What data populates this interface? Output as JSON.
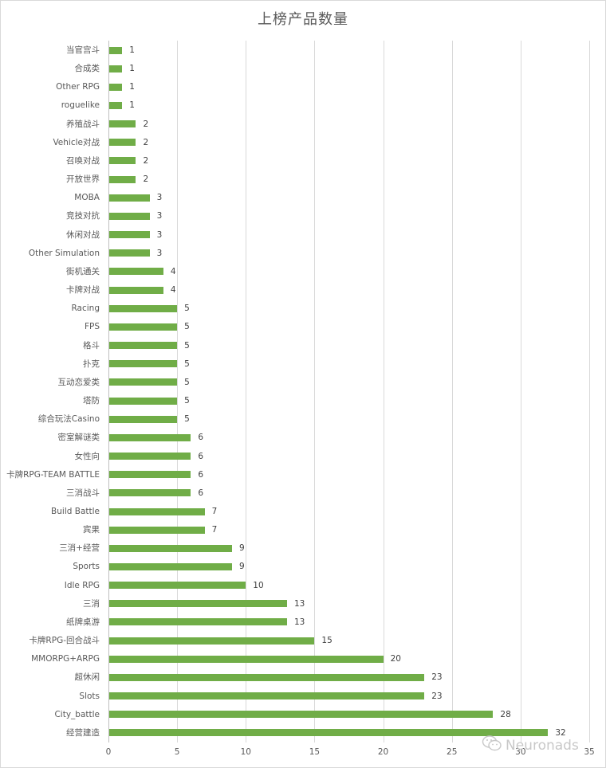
{
  "chart_data": {
    "type": "bar",
    "orientation": "horizontal",
    "title": "上榜产品数量",
    "xlabel": "",
    "ylabel": "",
    "xlim": [
      0,
      35
    ],
    "x_ticks": [
      0,
      5,
      10,
      15,
      20,
      25,
      30,
      35
    ],
    "grid": true,
    "legend": "none",
    "data_labels": true,
    "bar_color": "#70AD47",
    "categories": [
      "当官宫斗",
      "合成类",
      "Other RPG",
      "roguelike",
      "养殖战斗",
      "Vehicle对战",
      "召唤对战",
      "开放世界",
      "MOBA",
      "竞技对抗",
      "休闲对战",
      "Other Simulation",
      "街机通关",
      "卡牌对战",
      "Racing",
      "FPS",
      "格斗",
      "扑克",
      "互动恋爱类",
      "塔防",
      "综合玩法Casino",
      "密室解谜类",
      "女性向",
      "卡牌RPG-TEAM BATTLE",
      "三消战斗",
      "Build Battle",
      "宾果",
      "三消+经营",
      "Sports",
      "Idle RPG",
      "三消",
      "纸牌桌游",
      "卡牌RPG-回合战斗",
      "MMORPG+ARPG",
      "超休闲",
      "Slots",
      "City_battle",
      "经营建造"
    ],
    "values": [
      1,
      1,
      1,
      1,
      2,
      2,
      2,
      2,
      3,
      3,
      3,
      3,
      4,
      4,
      5,
      5,
      5,
      5,
      5,
      5,
      5,
      6,
      6,
      6,
      6,
      7,
      7,
      9,
      9,
      10,
      13,
      13,
      15,
      20,
      23,
      23,
      28,
      32
    ]
  },
  "watermark": {
    "text": "Neuronads",
    "icon": "wechat-icon"
  }
}
